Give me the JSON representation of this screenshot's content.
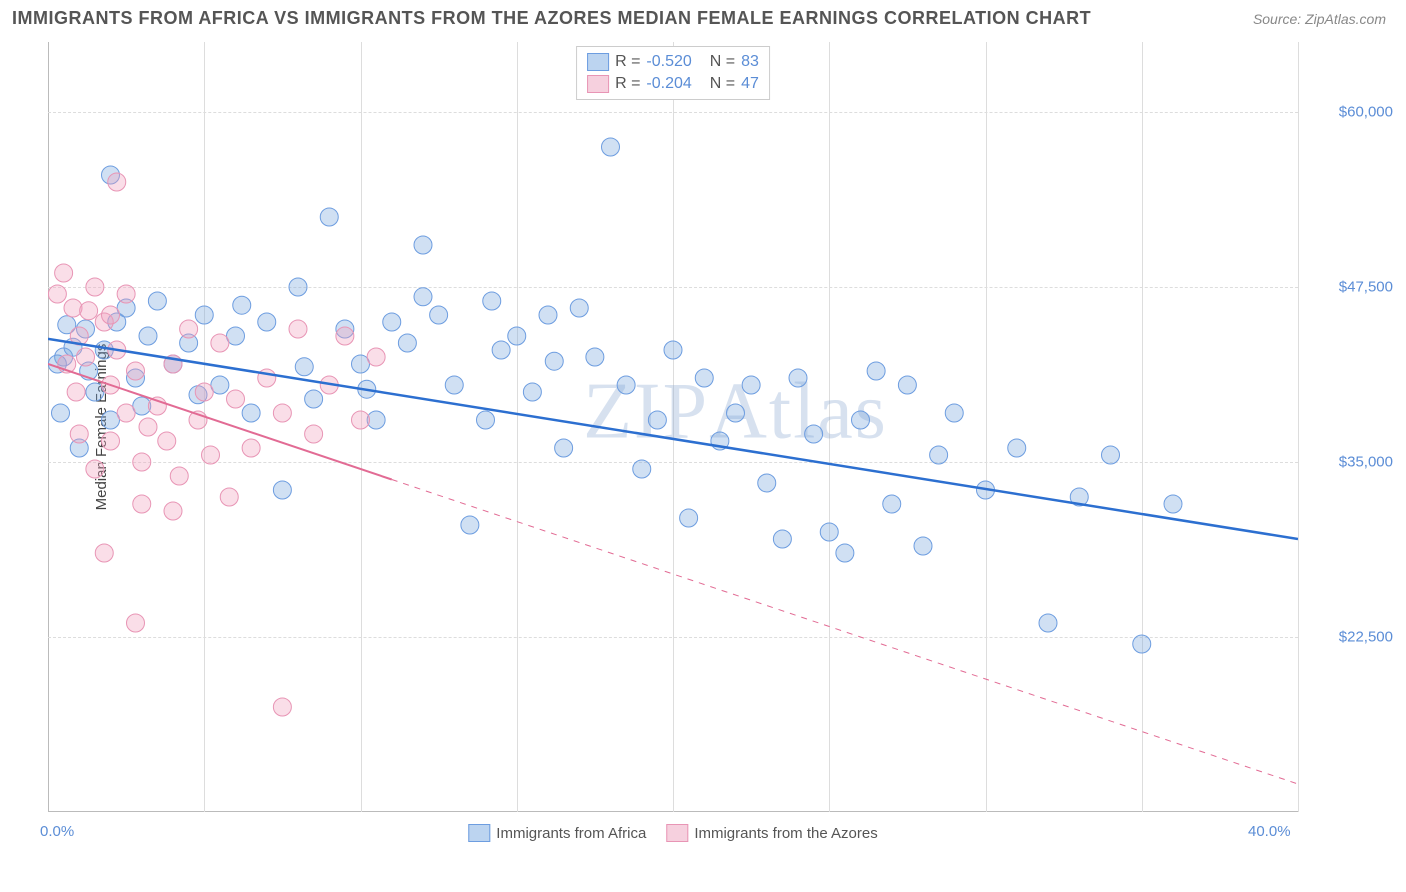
{
  "title": "IMMIGRANTS FROM AFRICA VS IMMIGRANTS FROM THE AZORES MEDIAN FEMALE EARNINGS CORRELATION CHART",
  "source": "Source: ZipAtlas.com",
  "watermark": "ZIPAtlas",
  "chart": {
    "type": "scatter",
    "background_color": "#ffffff",
    "grid_color": "#dddddd",
    "axis_color": "#bbbbbb",
    "y_label": "Median Female Earnings",
    "y_label_color": "#444444",
    "tick_label_color": "#5b8dd6",
    "tick_fontsize": 15,
    "label_fontsize": 15,
    "xlim": [
      0,
      40
    ],
    "ylim": [
      10000,
      65000
    ],
    "x_ticks": [
      {
        "pos": 0.0,
        "label": "0.0%"
      },
      {
        "pos": 1.0,
        "label": "40.0%"
      }
    ],
    "x_grid_positions": [
      0.125,
      0.25,
      0.375,
      0.5,
      0.625,
      0.75,
      0.875,
      1.0
    ],
    "y_ticks": [
      {
        "val": 22500,
        "label": "$22,500"
      },
      {
        "val": 35000,
        "label": "$35,000"
      },
      {
        "val": 47500,
        "label": "$47,500"
      },
      {
        "val": 60000,
        "label": "$60,000"
      }
    ],
    "series": [
      {
        "name": "Immigrants from Africa",
        "color_fill": "rgba(120,165,220,0.35)",
        "color_stroke": "#6d9de0",
        "marker_radius": 9,
        "legend_swatch_fill": "#bcd4f0",
        "legend_swatch_border": "#6d9de0",
        "correlation_R": "-0.520",
        "correlation_N": "83",
        "trend": {
          "x1": 0,
          "y1": 43800,
          "x2": 40,
          "y2": 29500,
          "color": "#2c6fd0",
          "width": 2.5,
          "dash_from_x": null
        },
        "points": [
          [
            0.5,
            42500
          ],
          [
            0.8,
            43200
          ],
          [
            1.0,
            36000
          ],
          [
            1.2,
            44500
          ],
          [
            1.5,
            40000
          ],
          [
            1.8,
            43000
          ],
          [
            2.0,
            38000
          ],
          [
            2.2,
            45000
          ],
          [
            2.5,
            46000
          ],
          [
            2.8,
            41000
          ],
          [
            3.0,
            39000
          ],
          [
            3.2,
            44000
          ],
          [
            3.5,
            46500
          ],
          [
            4.0,
            42000
          ],
          [
            4.5,
            43500
          ],
          [
            5.0,
            45500
          ],
          [
            5.5,
            40500
          ],
          [
            6.0,
            44000
          ],
          [
            6.5,
            38500
          ],
          [
            7.0,
            45000
          ],
          [
            7.5,
            33000
          ],
          [
            8.0,
            47500
          ],
          [
            8.5,
            39500
          ],
          [
            9.0,
            52500
          ],
          [
            9.5,
            44500
          ],
          [
            10.0,
            42000
          ],
          [
            10.5,
            38000
          ],
          [
            11.0,
            45000
          ],
          [
            11.5,
            43500
          ],
          [
            12.0,
            50500
          ],
          [
            12.5,
            45500
          ],
          [
            13.0,
            40500
          ],
          [
            13.5,
            30500
          ],
          [
            14.0,
            38000
          ],
          [
            14.5,
            43000
          ],
          [
            15.0,
            44000
          ],
          [
            15.5,
            40000
          ],
          [
            16.0,
            45500
          ],
          [
            16.5,
            36000
          ],
          [
            17.0,
            46000
          ],
          [
            17.5,
            42500
          ],
          [
            18.0,
            57500
          ],
          [
            18.5,
            40500
          ],
          [
            19.0,
            34500
          ],
          [
            19.5,
            38000
          ],
          [
            20.0,
            43000
          ],
          [
            20.5,
            31000
          ],
          [
            21.0,
            41000
          ],
          [
            21.5,
            36500
          ],
          [
            22.0,
            38500
          ],
          [
            22.5,
            40500
          ],
          [
            23.0,
            33500
          ],
          [
            23.5,
            29500
          ],
          [
            24.0,
            41000
          ],
          [
            24.5,
            37000
          ],
          [
            25.0,
            30000
          ],
          [
            25.5,
            28500
          ],
          [
            26.0,
            38000
          ],
          [
            26.5,
            41500
          ],
          [
            27.0,
            32000
          ],
          [
            27.5,
            40500
          ],
          [
            28.0,
            29000
          ],
          [
            28.5,
            35500
          ],
          [
            29.0,
            38500
          ],
          [
            30.0,
            33000
          ],
          [
            31.0,
            36000
          ],
          [
            32.0,
            23500
          ],
          [
            33.0,
            32500
          ],
          [
            34.0,
            35500
          ],
          [
            35.0,
            22000
          ],
          [
            36.0,
            32000
          ],
          [
            2.0,
            55500
          ],
          [
            12.0,
            46800
          ],
          [
            6.2,
            46200
          ],
          [
            4.8,
            39800
          ],
          [
            8.2,
            41800
          ],
          [
            10.2,
            40200
          ],
          [
            14.2,
            46500
          ],
          [
            16.2,
            42200
          ],
          [
            0.4,
            38500
          ],
          [
            0.3,
            42000
          ],
          [
            0.6,
            44800
          ],
          [
            1.3,
            41500
          ]
        ]
      },
      {
        "name": "Immigrants from the Azores",
        "color_fill": "rgba(240,160,190,0.35)",
        "color_stroke": "#e895b5",
        "marker_radius": 9,
        "legend_swatch_fill": "#f6d0de",
        "legend_swatch_border": "#e895b5",
        "correlation_R": "-0.204",
        "correlation_N": "47",
        "trend": {
          "x1": 0,
          "y1": 42000,
          "x2": 40,
          "y2": 12000,
          "color": "#e26b94",
          "width": 2,
          "dash_from_x": 11
        },
        "points": [
          [
            0.3,
            47000
          ],
          [
            0.5,
            48500
          ],
          [
            0.8,
            46000
          ],
          [
            1.0,
            44000
          ],
          [
            1.2,
            42500
          ],
          [
            1.5,
            47500
          ],
          [
            1.8,
            45000
          ],
          [
            2.0,
            40500
          ],
          [
            2.2,
            43000
          ],
          [
            2.5,
            38500
          ],
          [
            2.8,
            41500
          ],
          [
            3.0,
            35000
          ],
          [
            3.2,
            37500
          ],
          [
            3.5,
            39000
          ],
          [
            3.8,
            36500
          ],
          [
            4.0,
            42000
          ],
          [
            4.2,
            34000
          ],
          [
            4.5,
            44500
          ],
          [
            4.8,
            38000
          ],
          [
            5.0,
            40000
          ],
          [
            5.2,
            35500
          ],
          [
            5.5,
            43500
          ],
          [
            5.8,
            32500
          ],
          [
            6.0,
            39500
          ],
          [
            6.5,
            36000
          ],
          [
            7.0,
            41000
          ],
          [
            7.5,
            38500
          ],
          [
            8.0,
            44500
          ],
          [
            8.5,
            37000
          ],
          [
            9.0,
            40500
          ],
          [
            9.5,
            44000
          ],
          [
            10.0,
            38000
          ],
          [
            10.5,
            42500
          ],
          [
            1.0,
            37000
          ],
          [
            1.5,
            34500
          ],
          [
            2.0,
            45500
          ],
          [
            2.5,
            47000
          ],
          [
            0.6,
            42000
          ],
          [
            0.9,
            40000
          ],
          [
            3.0,
            32000
          ],
          [
            2.2,
            55000
          ],
          [
            1.8,
            28500
          ],
          [
            2.8,
            23500
          ],
          [
            7.5,
            17500
          ],
          [
            4.0,
            31500
          ],
          [
            2.0,
            36500
          ],
          [
            1.3,
            45800
          ]
        ]
      }
    ]
  }
}
